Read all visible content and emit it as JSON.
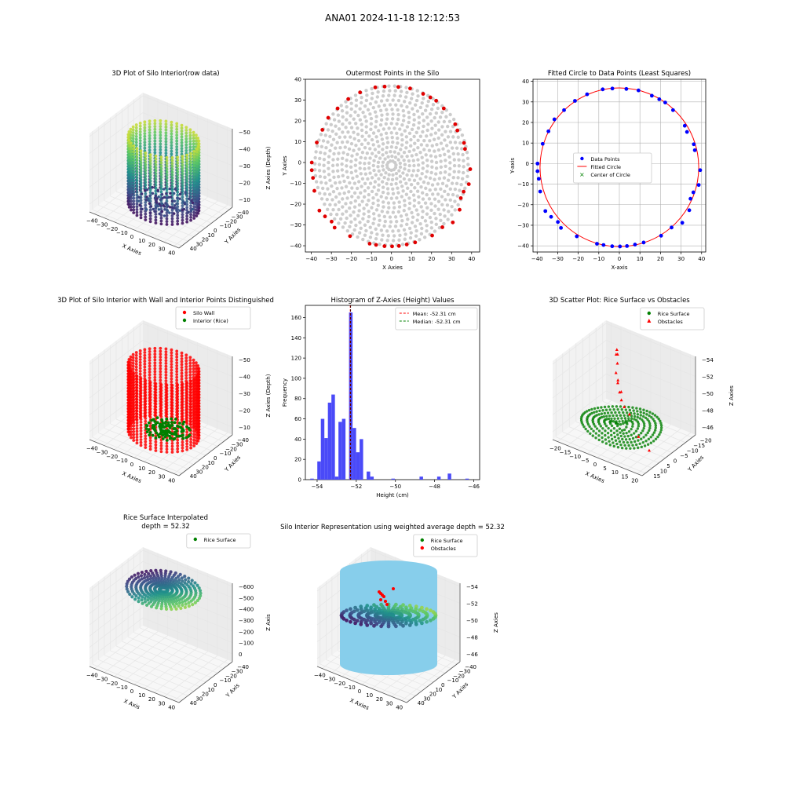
{
  "suptitle": "ANA01 2024-11-18 12:12:53",
  "chart_data": [
    {
      "type": "scatter3d",
      "title": "3D Plot of Silo Interior(row data)",
      "xlabel": "X Axies",
      "ylabel": "Y Axies",
      "zlabel": "Z Axies (Depth)",
      "xticks": [
        "−40",
        "−30",
        "−20",
        "−10",
        "0",
        "10",
        "20",
        "30",
        "40"
      ],
      "yticks": [
        "40",
        "30",
        "20",
        "10",
        "0",
        "−10",
        "−20",
        "−30",
        "−40"
      ],
      "zticks": [
        "−10",
        "−20",
        "−30",
        "−40",
        "−50"
      ],
      "zlim": [
        -56,
        -8
      ],
      "colormap": "viridis"
    },
    {
      "type": "scatter",
      "title": "Outermost Points in the Silo",
      "xlabel": "X Axies",
      "ylabel": "Y Axies",
      "xlim": [
        -43,
        44
      ],
      "ylim": [
        -43,
        40
      ],
      "xticks": [
        -40,
        -30,
        -20,
        -10,
        0,
        10,
        20,
        30,
        40
      ],
      "yticks": [
        -40,
        -30,
        -20,
        -10,
        0,
        10,
        20,
        30,
        40
      ],
      "outer_color": "#e00000",
      "inner_color": "#cccccc",
      "outer_points": [
        [
          -39.8,
          -3.7
        ],
        [
          -39.8,
          0.0
        ],
        [
          -39.2,
          -7.4
        ],
        [
          -38.5,
          -13.6
        ],
        [
          -37.3,
          9.6
        ],
        [
          -36.0,
          -23.1
        ],
        [
          -34.5,
          15.7
        ],
        [
          -33.2,
          -25.9
        ],
        [
          -31.6,
          21.5
        ],
        [
          -29.9,
          -28.4
        ],
        [
          -28.4,
          -31.3
        ],
        [
          -26.9,
          26.0
        ],
        [
          -21.6,
          30.5
        ],
        [
          -20.7,
          -35.4
        ],
        [
          -15.7,
          33.7
        ],
        [
          -10.9,
          -39.0
        ],
        [
          -8.1,
          36.1
        ],
        [
          -7.7,
          -39.6
        ],
        [
          -3.5,
          -40.2
        ],
        [
          -3.4,
          36.5
        ],
        [
          0.3,
          -40.3
        ],
        [
          3.4,
          36.3
        ],
        [
          3.7,
          -40.1
        ],
        [
          7.6,
          -39.4
        ],
        [
          9.3,
          35.6
        ],
        [
          11.8,
          -38.4
        ],
        [
          15.8,
          33.0
        ],
        [
          19.4,
          31.3
        ],
        [
          20.3,
          -35.1
        ],
        [
          22.3,
          29.7
        ],
        [
          25.4,
          -31.1
        ],
        [
          26.1,
          26.0
        ],
        [
          30.6,
          -28.8
        ],
        [
          31.8,
          18.4
        ],
        [
          32.9,
          15.4
        ],
        [
          34.0,
          -22.7
        ],
        [
          34.6,
          -17.1
        ],
        [
          36.0,
          -14.0
        ],
        [
          36.2,
          9.4
        ],
        [
          36.7,
          6.5
        ],
        [
          38.6,
          -10.4
        ],
        [
          39.3,
          -3.2
        ]
      ]
    },
    {
      "type": "scatter",
      "title": "Fitted Circle to Data Points (Least Squares)",
      "xlabel": "X-axis",
      "ylabel": "Y-axis",
      "xlim": [
        -42,
        42
      ],
      "ylim": [
        -43,
        41
      ],
      "xticks": [
        -40,
        -30,
        -20,
        -10,
        0,
        10,
        20,
        30,
        40
      ],
      "yticks": [
        -40,
        -30,
        -20,
        -10,
        0,
        10,
        20,
        30,
        40
      ],
      "grid": true,
      "legend": [
        "Data Points",
        "Fitted Circle",
        "Center of Circle"
      ],
      "legend_location": "center",
      "circle_center": [
        0.0,
        -1.8
      ],
      "circle_radius": 38.6,
      "series_colors": {
        "points": "#0000ff",
        "circle": "#ff0000",
        "center": "#008000"
      }
    },
    {
      "type": "scatter3d",
      "title": "3D Plot of Silo Interior with Wall and Interior Points Distinguished",
      "xlabel": "X Axies",
      "ylabel": "Y Axies",
      "zlabel": "Z Axies (Depth)",
      "xticks": [
        "−40",
        "−30",
        "−20",
        "−10",
        "0",
        "10",
        "20",
        "30",
        "40"
      ],
      "yticks": [
        "40",
        "30",
        "20",
        "10",
        "0",
        "−10",
        "−20",
        "−30",
        "−40"
      ],
      "zticks": [
        "−10",
        "−20",
        "−30",
        "−40",
        "−50"
      ],
      "legend": [
        "Silo Wall",
        "Interior (Rice)"
      ],
      "legend_location": "upper right",
      "series_colors": {
        "wall": "#ff0000",
        "interior": "#008000"
      }
    },
    {
      "type": "histogram",
      "title": "Histogram of Z-Axies (Height) Values",
      "xlabel": "Height (cm)",
      "ylabel": "Frequency",
      "xlim": [
        -54.6,
        -45.7
      ],
      "ylim": [
        0,
        172
      ],
      "xticks": [
        -54,
        -52,
        -50,
        -48,
        -46
      ],
      "yticks": [
        0,
        20,
        40,
        60,
        80,
        100,
        120,
        140,
        160
      ],
      "bin_start": -54.35,
      "bin_width": 0.18,
      "counts": [
        1,
        0,
        18,
        60,
        41,
        76,
        84,
        3,
        57,
        60,
        0,
        165,
        51,
        27,
        40,
        0,
        8,
        3,
        0,
        0,
        0,
        0,
        0,
        1,
        0,
        0,
        0,
        0,
        0,
        0,
        0,
        3,
        0,
        0,
        0,
        0,
        3,
        0,
        0,
        6,
        0,
        0,
        0,
        0,
        1
      ],
      "bar_color": "#4a4af8",
      "mean": -52.31,
      "median": -52.31,
      "legend": [
        "Mean: -52.31 cm",
        "Median: -52.31 cm"
      ],
      "legend_location": "upper right"
    },
    {
      "type": "scatter3d",
      "title": "3D Scatter Plot: Rice Surface vs Obstacles",
      "xlabel": "X Axies",
      "ylabel": "Y Axies",
      "zlabel": "Z Axies",
      "xticks": [
        "−20",
        "−15",
        "−10",
        "−5",
        "0",
        "5",
        "10",
        "15",
        "20"
      ],
      "yticks": [
        "15",
        "10",
        "5",
        "0",
        "−5",
        "−10",
        "−15",
        "−20"
      ],
      "zticks": [
        "−46",
        "−48",
        "−50",
        "−52",
        "−54"
      ],
      "legend": [
        "Rice Surface",
        "Obstacles"
      ],
      "legend_location": "upper right",
      "series_colors": {
        "surface": "#008000",
        "obstacles": "#ff0000"
      }
    },
    {
      "type": "surface3d",
      "title": "Rice Surface Interpolated",
      "subtitle": "depth = 52.32",
      "xlabel": "X Axis",
      "ylabel": "Y Axis",
      "zlabel": "Z Axis",
      "xticks": [
        "−40",
        "−30",
        "−20",
        "−10",
        "0",
        "10",
        "20",
        "30",
        "40"
      ],
      "yticks": [
        "40",
        "30",
        "20",
        "10",
        "0",
        "−10",
        "−20",
        "−30",
        "−40"
      ],
      "zticks": [
        "0",
        "−100",
        "−200",
        "−300",
        "−400",
        "−500",
        "−600"
      ],
      "legend": [
        "Rice Surface"
      ],
      "legend_location": "upper right"
    },
    {
      "type": "surface3d",
      "title": "Silo Interior Representation using weighted average depth = 52.32",
      "xlabel": "X Axies",
      "ylabel": "Y Axies",
      "zlabel": "Z Axies",
      "xticks": [
        "−40",
        "−30",
        "−20",
        "−10",
        "0",
        "10",
        "20",
        "30",
        "40"
      ],
      "yticks": [
        "40",
        "30",
        "20",
        "10",
        "0",
        "−10",
        "−20",
        "−30",
        "−40"
      ],
      "zticks": [
        "−46",
        "−48",
        "−50",
        "−52",
        "−54"
      ],
      "legend": [
        "Rice Surface",
        "Obstacles"
      ],
      "legend_location": "upper center",
      "cylinder_color": "#87ceeb"
    }
  ]
}
